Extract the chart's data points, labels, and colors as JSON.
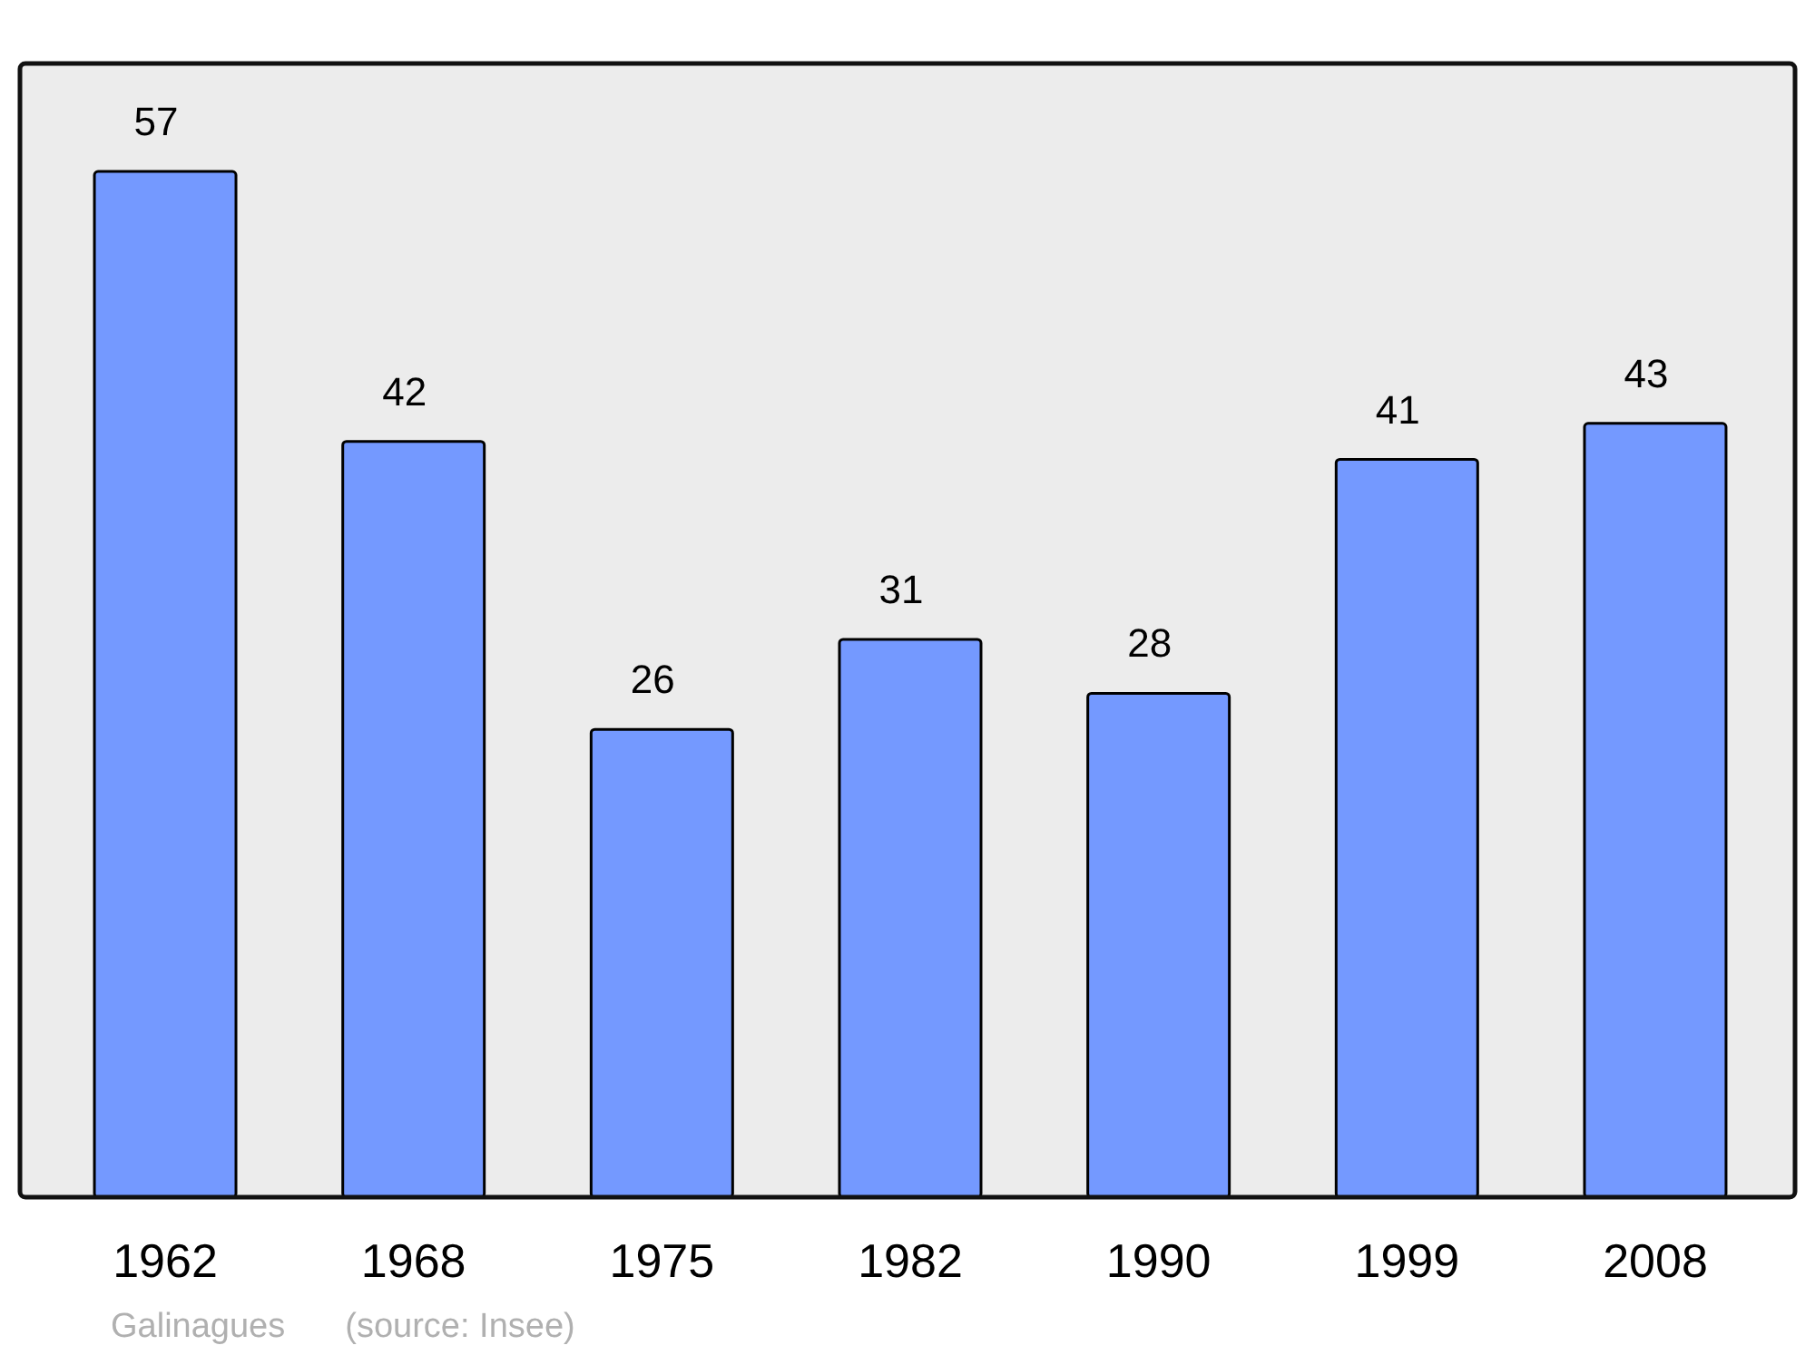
{
  "chart_data": {
    "type": "bar",
    "categories": [
      "1962",
      "1968",
      "1975",
      "1982",
      "1990",
      "1999",
      "2008"
    ],
    "values": [
      57,
      42,
      26,
      31,
      28,
      41,
      43
    ],
    "color": "#7499ff",
    "ylim": [
      0,
      63
    ],
    "data_labels": true,
    "tick_labels": "x",
    "annotations": [
      "Galinagues",
      "(source: Insee)"
    ]
  }
}
